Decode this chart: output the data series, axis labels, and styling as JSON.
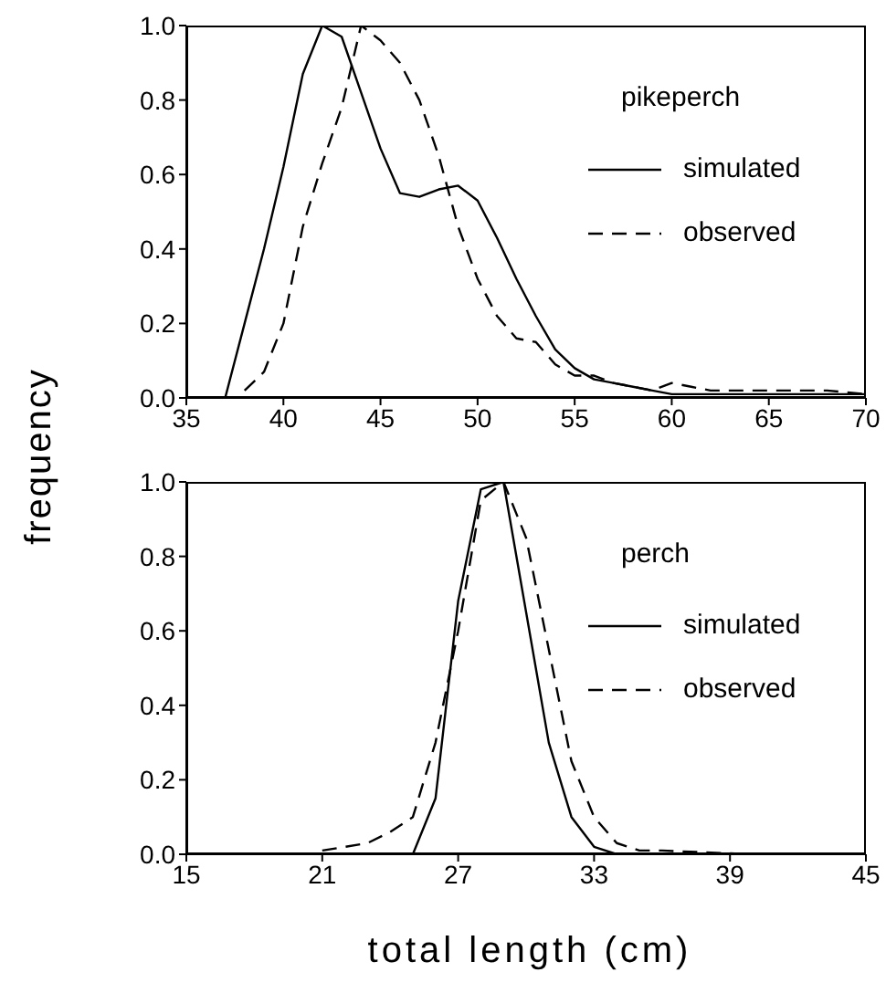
{
  "chart_data": [
    {
      "type": "line",
      "legend_title": "pikeperch",
      "ylabel": "frequency",
      "legend": "right",
      "xlim": [
        35,
        70
      ],
      "xticks": [
        35,
        40,
        45,
        50,
        55,
        60,
        65,
        70
      ],
      "ylim": [
        0,
        1
      ],
      "yticks": [
        {
          "value": 0,
          "label": "0.0"
        },
        {
          "value": 0.2,
          "label": "0.2"
        },
        {
          "value": 0.4,
          "label": "0.4"
        },
        {
          "value": 0.6,
          "label": "0.6"
        },
        {
          "value": 0.8,
          "label": "0.8"
        },
        {
          "value": 1,
          "label": "1.0"
        }
      ],
      "grid": false,
      "marker": "none",
      "series": [
        {
          "name": "simulated",
          "color": "#000000",
          "line_style": "solid",
          "x": [
            37,
            38,
            39,
            40,
            41,
            42,
            43,
            44,
            45,
            46,
            47,
            48,
            49,
            50,
            51,
            52,
            53,
            54,
            55,
            56,
            57,
            58,
            59,
            60,
            62,
            65,
            68,
            70
          ],
          "values": [
            0,
            0.2,
            0.4,
            0.62,
            0.87,
            1.0,
            0.97,
            0.82,
            0.67,
            0.55,
            0.54,
            0.56,
            0.57,
            0.53,
            0.43,
            0.32,
            0.22,
            0.13,
            0.08,
            0.05,
            0.04,
            0.03,
            0.02,
            0.01,
            0.01,
            0.01,
            0.01,
            0.01
          ]
        },
        {
          "name": "observed",
          "color": "#000000",
          "line_style": "dashed",
          "x": [
            38,
            39,
            40,
            41,
            42,
            43,
            44,
            45,
            46,
            47,
            48,
            49,
            50,
            51,
            52,
            53,
            54,
            55,
            56,
            57,
            58,
            59,
            60,
            61,
            62,
            65,
            68,
            70
          ],
          "values": [
            0.02,
            0.07,
            0.2,
            0.46,
            0.63,
            0.78,
            1.0,
            0.96,
            0.9,
            0.8,
            0.65,
            0.46,
            0.32,
            0.22,
            0.16,
            0.15,
            0.09,
            0.06,
            0.06,
            0.04,
            0.03,
            0.02,
            0.04,
            0.03,
            0.02,
            0.02,
            0.02,
            0.01
          ]
        }
      ]
    },
    {
      "type": "line",
      "legend_title": "perch",
      "xlabel": "total length (cm)",
      "legend": "right",
      "xlim": [
        15,
        45
      ],
      "xticks": [
        15,
        21,
        27,
        33,
        39,
        45
      ],
      "ylim": [
        0,
        1
      ],
      "yticks": [
        {
          "value": 0,
          "label": "0.0"
        },
        {
          "value": 0.2,
          "label": "0.2"
        },
        {
          "value": 0.4,
          "label": "0.4"
        },
        {
          "value": 0.6,
          "label": "0.6"
        },
        {
          "value": 0.8,
          "label": "0.8"
        },
        {
          "value": 1,
          "label": "1.0"
        }
      ],
      "grid": false,
      "marker": "none",
      "series": [
        {
          "name": "simulated",
          "color": "#000000",
          "line_style": "solid",
          "x": [
            25,
            26,
            27,
            28,
            29,
            30,
            31,
            32,
            33,
            34
          ],
          "values": [
            0,
            0.15,
            0.68,
            0.98,
            1.0,
            0.65,
            0.3,
            0.1,
            0.02,
            0
          ]
        },
        {
          "name": "observed",
          "color": "#000000",
          "line_style": "dashed",
          "x": [
            21,
            23,
            24,
            25,
            26,
            27,
            28,
            29,
            30,
            31,
            32,
            33,
            34,
            35,
            36,
            40
          ],
          "values": [
            0.01,
            0.03,
            0.06,
            0.1,
            0.3,
            0.6,
            0.95,
            1.0,
            0.85,
            0.55,
            0.25,
            0.1,
            0.03,
            0.01,
            0.01,
            0
          ]
        }
      ]
    }
  ]
}
